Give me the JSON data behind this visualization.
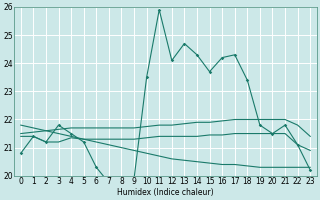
{
  "xlabel": "Humidex (Indice chaleur)",
  "xlim_min": -0.5,
  "xlim_max": 23.5,
  "ylim": [
    20,
    26
  ],
  "yticks": [
    20,
    21,
    22,
    23,
    24,
    25,
    26
  ],
  "xticks": [
    0,
    1,
    2,
    3,
    4,
    5,
    6,
    7,
    8,
    9,
    10,
    11,
    12,
    13,
    14,
    15,
    16,
    17,
    18,
    19,
    20,
    21,
    22,
    23
  ],
  "bg_color": "#cce8e8",
  "line_color": "#1a7a6a",
  "grid_color": "#ffffff",
  "main_y": [
    20.8,
    21.4,
    21.2,
    21.8,
    21.5,
    21.2,
    20.3,
    19.75,
    19.6,
    19.9,
    23.5,
    25.9,
    24.1,
    24.7,
    24.3,
    23.7,
    24.2,
    24.3,
    23.4,
    21.8,
    21.5,
    21.8,
    21.1,
    20.2
  ],
  "slow_inc": [
    21.5,
    21.55,
    21.6,
    21.65,
    21.7,
    21.7,
    21.7,
    21.7,
    21.7,
    21.7,
    21.75,
    21.8,
    21.8,
    21.85,
    21.9,
    21.9,
    21.95,
    22.0,
    22.0,
    22.0,
    22.0,
    22.0,
    21.8,
    21.4
  ],
  "slow_dec": [
    21.8,
    21.7,
    21.6,
    21.5,
    21.4,
    21.3,
    21.2,
    21.1,
    21.0,
    20.9,
    20.8,
    20.7,
    20.6,
    20.55,
    20.5,
    20.45,
    20.4,
    20.4,
    20.35,
    20.3,
    20.3,
    20.3,
    20.3,
    20.3
  ],
  "flat_y": [
    21.4,
    21.4,
    21.2,
    21.2,
    21.35,
    21.3,
    21.3,
    21.3,
    21.3,
    21.3,
    21.35,
    21.4,
    21.4,
    21.4,
    21.4,
    21.45,
    21.45,
    21.5,
    21.5,
    21.5,
    21.5,
    21.5,
    21.1,
    20.9
  ],
  "label_fontsize": 5.5,
  "tick_fontsize": 5.5
}
